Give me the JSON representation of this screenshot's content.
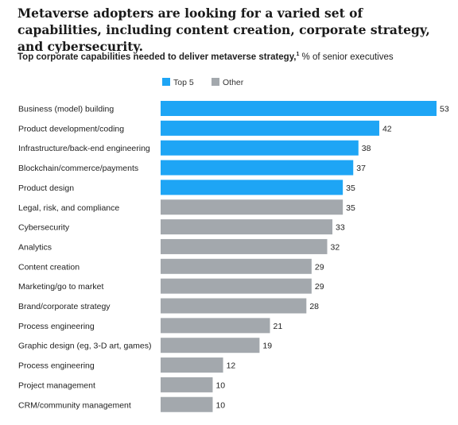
{
  "headline": "Metaverse adopters are looking for a varied set of capabilities, including content creation, corporate strategy, and cybersecurity.",
  "subtitle_bold": "Top corporate capabilities needed to deliver metaverse strategy,",
  "subtitle_sup": "1",
  "subtitle_rest": " % of senior executives",
  "colors": {
    "top5": "#1ea5f5",
    "other": "#a3a8ad"
  },
  "chart_data": {
    "type": "bar",
    "orientation": "horizontal",
    "legend": [
      {
        "key": "top5",
        "label": "Top 5"
      },
      {
        "key": "other",
        "label": "Other"
      }
    ],
    "legend_position": "top",
    "xlim": [
      0,
      53
    ],
    "grid": false,
    "categories": [
      "Business (model) building",
      "Product development/coding",
      "Infrastructure/back-end engineering",
      "Blockchain/commerce/payments",
      "Product design",
      "Legal, risk, and compliance",
      "Cybersecurity",
      "Analytics",
      "Content creation",
      "Marketing/go to market",
      "Brand/corporate strategy",
      "Process engineering",
      "Graphic design (eg, 3-D art, games)",
      "Process engineering",
      "Project management",
      "CRM/community management"
    ],
    "values": [
      53,
      42,
      38,
      37,
      35,
      35,
      33,
      32,
      29,
      29,
      28,
      21,
      19,
      12,
      10,
      10
    ],
    "groups": [
      "top5",
      "top5",
      "top5",
      "top5",
      "top5",
      "other",
      "other",
      "other",
      "other",
      "other",
      "other",
      "other",
      "other",
      "other",
      "other",
      "other"
    ]
  }
}
